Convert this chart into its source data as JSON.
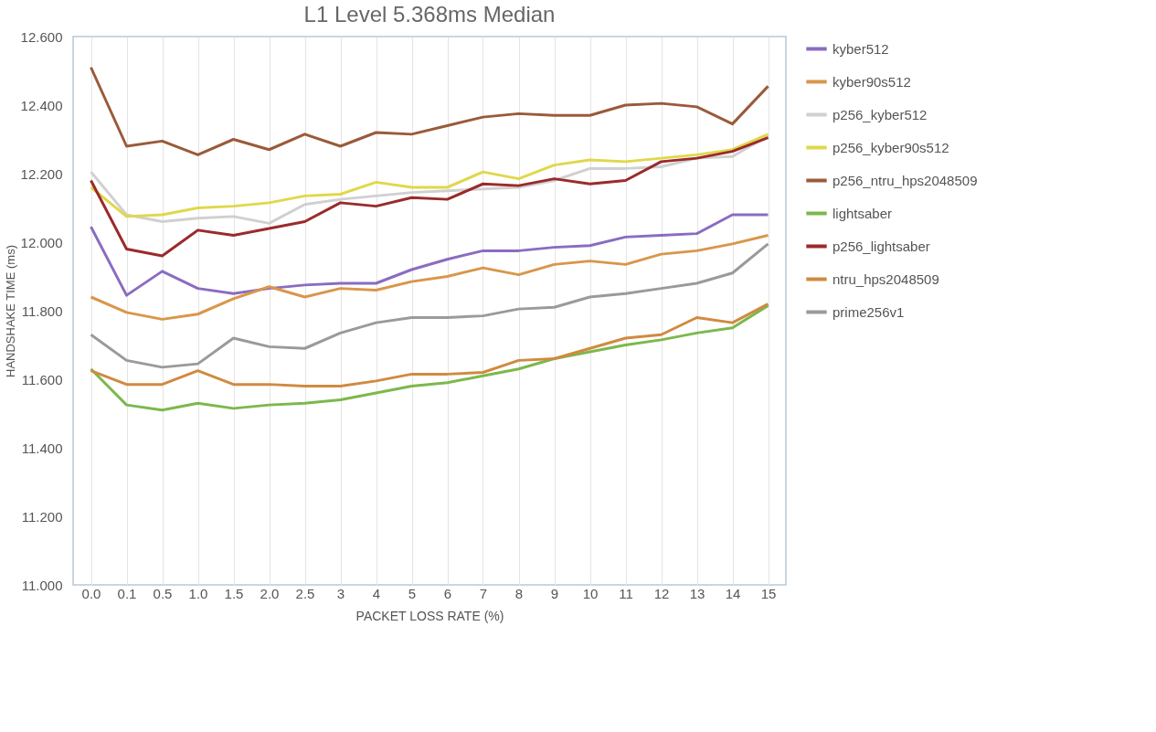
{
  "chart_data": {
    "type": "line",
    "title": "L1 Level 5.368ms Median",
    "xlabel": "PACKET LOSS RATE (%)",
    "ylabel": "HANDSHAKE TIME (ms)",
    "categories": [
      "0.0",
      "0.1",
      "0.5",
      "1.0",
      "1.5",
      "2.0",
      "2.5",
      "3",
      "4",
      "5",
      "6",
      "7",
      "8",
      "9",
      "10",
      "11",
      "12",
      "13",
      "14",
      "15"
    ],
    "ylim": [
      11.0,
      12.6
    ],
    "yticks": [
      {
        "value": 11.0,
        "label": "11.000"
      },
      {
        "value": 11.2,
        "label": "11.200"
      },
      {
        "value": 11.4,
        "label": "11.400"
      },
      {
        "value": 11.6,
        "label": "11.600"
      },
      {
        "value": 11.8,
        "label": "11.800"
      },
      {
        "value": 12.0,
        "label": "12.000"
      },
      {
        "value": 12.2,
        "label": "12.200"
      },
      {
        "value": 12.4,
        "label": "12.400"
      },
      {
        "value": 12.6,
        "label": "12.600"
      }
    ],
    "grid": "x",
    "legend": "right",
    "marker": "none",
    "line_style": "solid",
    "series": [
      {
        "name": "kyber512",
        "color": "#8a6cc0",
        "values": [
          12.045,
          11.845,
          11.915,
          11.865,
          11.85,
          11.865,
          11.875,
          11.88,
          11.88,
          11.92,
          11.95,
          11.975,
          11.975,
          11.985,
          11.99,
          12.015,
          12.02,
          12.025,
          12.08,
          12.08
        ]
      },
      {
        "name": "kyber90s512",
        "color": "#d9964a",
        "values": [
          11.84,
          11.795,
          11.775,
          11.79,
          11.835,
          11.87,
          11.84,
          11.865,
          11.86,
          11.885,
          11.9,
          11.925,
          11.905,
          11.935,
          11.945,
          11.935,
          11.965,
          11.975,
          11.995,
          12.02
        ]
      },
      {
        "name": "p256_kyber512",
        "color": "#d0d0d0",
        "values": [
          12.205,
          12.08,
          12.06,
          12.07,
          12.075,
          12.055,
          12.11,
          12.125,
          12.135,
          12.145,
          12.15,
          12.155,
          12.16,
          12.18,
          12.215,
          12.215,
          12.22,
          12.245,
          12.25,
          12.31
        ]
      },
      {
        "name": "p256_kyber90s512",
        "color": "#e0d84a",
        "values": [
          12.16,
          12.075,
          12.08,
          12.1,
          12.105,
          12.115,
          12.135,
          12.14,
          12.175,
          12.16,
          12.16,
          12.205,
          12.185,
          12.225,
          12.24,
          12.235,
          12.245,
          12.255,
          12.27,
          12.315
        ]
      },
      {
        "name": "p256_ntru_hps2048509",
        "color": "#9a5a3a",
        "values": [
          12.51,
          12.28,
          12.295,
          12.255,
          12.3,
          12.27,
          12.315,
          12.28,
          12.32,
          12.315,
          12.34,
          12.365,
          12.375,
          12.37,
          12.37,
          12.4,
          12.405,
          12.395,
          12.345,
          12.455
        ]
      },
      {
        "name": "lightsaber",
        "color": "#7cb84c",
        "values": [
          11.63,
          11.525,
          11.51,
          11.53,
          11.515,
          11.525,
          11.53,
          11.54,
          11.56,
          11.58,
          11.59,
          11.61,
          11.63,
          11.66,
          11.68,
          11.7,
          11.715,
          11.735,
          11.75,
          11.815
        ]
      },
      {
        "name": "p256_lightsaber",
        "color": "#9b2a2a",
        "values": [
          12.18,
          11.98,
          11.96,
          12.035,
          12.02,
          12.04,
          12.06,
          12.115,
          12.105,
          12.13,
          12.125,
          12.17,
          12.165,
          12.185,
          12.17,
          12.18,
          12.235,
          12.245,
          12.265,
          12.305
        ]
      },
      {
        "name": "ntru_hps2048509",
        "color": "#d08a40",
        "values": [
          11.625,
          11.585,
          11.585,
          11.625,
          11.585,
          11.585,
          11.58,
          11.58,
          11.595,
          11.615,
          11.615,
          11.62,
          11.655,
          11.66,
          11.69,
          11.72,
          11.73,
          11.78,
          11.765,
          11.82
        ]
      },
      {
        "name": "prime256v1",
        "color": "#9a9a9a",
        "values": [
          11.73,
          11.655,
          11.635,
          11.645,
          11.72,
          11.695,
          11.69,
          11.735,
          11.765,
          11.78,
          11.78,
          11.785,
          11.805,
          11.81,
          11.84,
          11.85,
          11.865,
          11.88,
          11.91,
          11.995
        ]
      }
    ]
  }
}
